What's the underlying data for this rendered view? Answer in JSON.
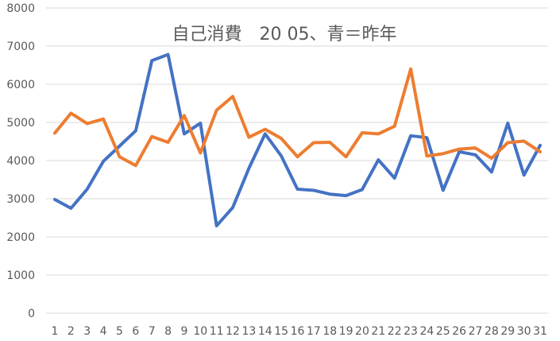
{
  "chart_data": {
    "type": "line",
    "title": "自己消費　20 05、青＝昨年",
    "xlabel": "",
    "ylabel": "",
    "x": [
      1,
      2,
      3,
      4,
      5,
      6,
      7,
      8,
      9,
      10,
      11,
      12,
      13,
      14,
      15,
      16,
      17,
      18,
      19,
      20,
      21,
      22,
      23,
      24,
      25,
      26,
      27,
      28,
      29,
      30,
      31
    ],
    "ylim": [
      0,
      8000
    ],
    "yticks": [
      0,
      1000,
      2000,
      3000,
      4000,
      5000,
      6000,
      7000,
      8000
    ],
    "grid": true,
    "legend": "none",
    "series": [
      {
        "color": "#4472c4",
        "values": [
          2980,
          2750,
          3250,
          3980,
          4380,
          4780,
          6620,
          6780,
          4700,
          4980,
          2290,
          2770,
          3800,
          4700,
          4120,
          3250,
          3220,
          3120,
          3080,
          3240,
          4020,
          3540,
          4650,
          4600,
          3220,
          4230,
          4150,
          3700,
          4980,
          3620,
          4400
        ]
      },
      {
        "color": "#ed7d31",
        "values": [
          4720,
          5240,
          4970,
          5090,
          4100,
          3870,
          4630,
          4480,
          5180,
          4200,
          5320,
          5680,
          4610,
          4820,
          4580,
          4100,
          4470,
          4480,
          4100,
          4730,
          4700,
          4900,
          6400,
          4120,
          4180,
          4300,
          4330,
          4060,
          4470,
          4510,
          4230
        ]
      }
    ]
  }
}
